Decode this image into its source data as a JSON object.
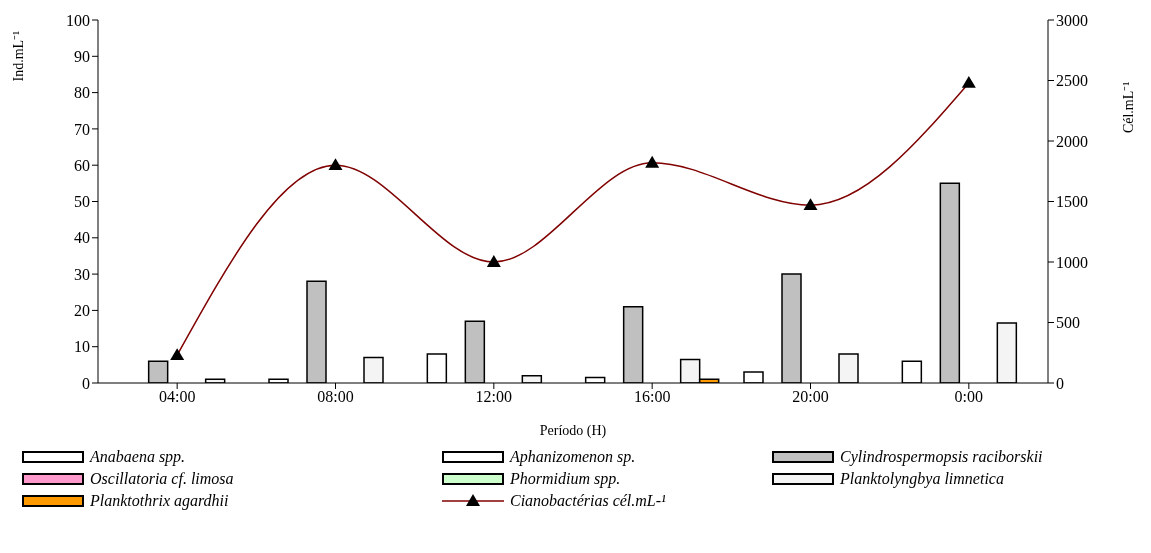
{
  "chart_data": {
    "type": "bar",
    "xlabel": "Período (H)",
    "ylabel": "Ind.mL⁻¹",
    "y2label": "Cél.mL⁻¹",
    "categories": [
      "04:00",
      "08:00",
      "12:00",
      "16:00",
      "20:00",
      "0:00"
    ],
    "ylim": [
      0,
      100
    ],
    "yticks": [
      0,
      10,
      20,
      30,
      40,
      50,
      60,
      70,
      80,
      90,
      100
    ],
    "y2lim": [
      0,
      3000
    ],
    "y2ticks": [
      0,
      500,
      1000,
      1500,
      2000,
      2500,
      3000
    ],
    "grid": false,
    "legend": "bottom",
    "marker": "triangle",
    "line_style": "solid",
    "series": [
      {
        "name": "Anabaena spp.",
        "color": "#ffffff",
        "values": [
          0,
          1,
          8,
          1.5,
          3,
          6
        ]
      },
      {
        "name": "Aphanizomenon sp.",
        "color": "#ffffff",
        "values": [
          0,
          0,
          0,
          0,
          0,
          0
        ]
      },
      {
        "name": "Cylindrospermopsis raciborskii",
        "color": "#c0c0c0",
        "values": [
          6,
          28,
          17,
          21,
          30,
          55
        ]
      },
      {
        "name": "Oscillatoria cf. limosa",
        "color": "#ff99cc",
        "values": [
          0,
          0,
          0,
          0,
          0,
          0
        ]
      },
      {
        "name": "Phormidium spp.",
        "color": "#ccffcc",
        "values": [
          0,
          0,
          0,
          0,
          0,
          0
        ]
      },
      {
        "name": "Planktolyngbya limnetica",
        "color": "#f4f4f4",
        "values": [
          1,
          7,
          2,
          6.5,
          8,
          16.5
        ]
      },
      {
        "name": "Planktothrix agardhii",
        "color": "#ff9900",
        "values": [
          0,
          0,
          0,
          1,
          0,
          0
        ]
      },
      {
        "name": "Cianobactérias cél.mL-¹",
        "color": "#800000",
        "type": "line",
        "axis": "y2",
        "values": [
          230,
          1800,
          1000,
          1820,
          1470,
          2480
        ]
      }
    ]
  }
}
